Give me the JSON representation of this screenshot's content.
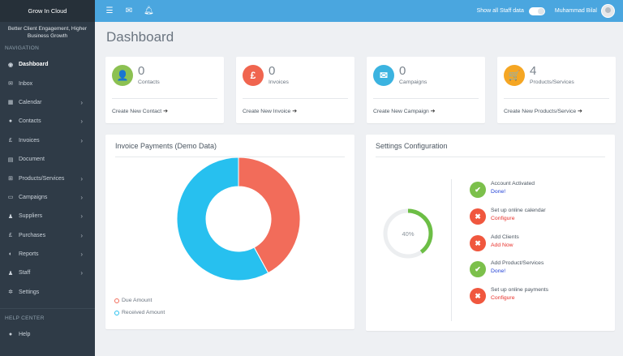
{
  "sidebar": {
    "brand": "Grow In Cloud",
    "tagline": "Better Client Engagement, Higher Business Growth",
    "nav_heading": "NAVIGATION",
    "items": [
      {
        "label": "Dashboard",
        "icon": "dashboard-icon",
        "glyph": "◉",
        "active": true,
        "chevron": false
      },
      {
        "label": "Inbox",
        "icon": "inbox-icon",
        "glyph": "✉",
        "active": false,
        "chevron": false
      },
      {
        "label": "Calendar",
        "icon": "calendar-icon",
        "glyph": "▦",
        "active": false,
        "chevron": true
      },
      {
        "label": "Contacts",
        "icon": "user-icon",
        "glyph": "●",
        "active": false,
        "chevron": true
      },
      {
        "label": "Invoices",
        "icon": "pound-icon",
        "glyph": "£",
        "active": false,
        "chevron": true
      },
      {
        "label": "Document",
        "icon": "document-icon",
        "glyph": "▤",
        "active": false,
        "chevron": false
      },
      {
        "label": "Products/Services",
        "icon": "cart-icon",
        "glyph": "⊞",
        "active": false,
        "chevron": true
      },
      {
        "label": "Campaigns",
        "icon": "campaign-icon",
        "glyph": "▭",
        "active": false,
        "chevron": true
      },
      {
        "label": "Suppliers",
        "icon": "suppliers-icon",
        "glyph": "♟",
        "active": false,
        "chevron": true
      },
      {
        "label": "Purchases",
        "icon": "pound-icon",
        "glyph": "£",
        "active": false,
        "chevron": true
      },
      {
        "label": "Reports",
        "icon": "reports-icon",
        "glyph": "◐",
        "active": false,
        "chevron": true
      },
      {
        "label": "Staff",
        "icon": "staff-icon",
        "glyph": "♟",
        "active": false,
        "chevron": true
      },
      {
        "label": "Settings",
        "icon": "gear-icon",
        "glyph": "✲",
        "active": false,
        "chevron": false
      }
    ],
    "help_heading": "HELP CENTER",
    "help_items": [
      {
        "label": "Help",
        "icon": "help-icon",
        "glyph": "●"
      }
    ]
  },
  "header": {
    "staff_toggle_label": "Show all Staff data",
    "staff_toggle_on": true,
    "user_name": "Muhammad Bilal"
  },
  "page": {
    "title": "Dashboard"
  },
  "stats": [
    {
      "count": "0",
      "label": "Contacts",
      "link": "Create New Contact",
      "icon": "user-icon",
      "glyph": "👤",
      "color": "#8cc152"
    },
    {
      "count": "0",
      "label": "Invoices",
      "link": "Create New Invoice",
      "icon": "pound-icon",
      "glyph": "£",
      "color": "#f0654f"
    },
    {
      "count": "0",
      "label": "Campaigns",
      "link": "Create New Campaign",
      "icon": "email-icon",
      "glyph": "✉",
      "color": "#3bb3e0"
    },
    {
      "count": "4",
      "label": "Products/Services",
      "link": "Create New Products/Service",
      "icon": "cart-icon",
      "glyph": "🛒",
      "color": "#f5a623"
    }
  ],
  "invoice_panel": {
    "title": "Invoice Payments (Demo Data)",
    "legend": [
      {
        "label": "Due Amount",
        "color": "#f26c5a"
      },
      {
        "label": "Received Amount",
        "color": "#27c0ef"
      }
    ]
  },
  "chart_data": {
    "type": "pie",
    "title": "Invoice Payments (Demo Data)",
    "categories": [
      "Due Amount",
      "Received Amount"
    ],
    "values": [
      42,
      58
    ],
    "colors": [
      "#f26c5a",
      "#27c0ef"
    ],
    "donut": true,
    "legend": "bottom-left"
  },
  "settings_panel": {
    "title": "Settings Configuration",
    "progress_label": "40%",
    "progress_fraction": 0.4,
    "progress_color": "#6cbe45",
    "tasks": [
      {
        "label": "Account Activated",
        "action": "Done!",
        "status": "done",
        "icon": "check-icon"
      },
      {
        "label": "Set up online calendar",
        "action": "Configure",
        "status": "todo",
        "icon": "close-icon"
      },
      {
        "label": "Add Clients",
        "action": "Add Now",
        "status": "todo",
        "icon": "close-icon"
      },
      {
        "label": "Add Product/Services",
        "action": "Done!",
        "status": "done",
        "icon": "check-icon"
      },
      {
        "label": "Set up online payments",
        "action": "Configure",
        "status": "todo",
        "icon": "close-icon"
      }
    ]
  },
  "colors": {
    "done": "#7cc04b",
    "todo": "#f0573e",
    "done_link": "#1f3fd6",
    "todo_link": "#e8302a"
  }
}
